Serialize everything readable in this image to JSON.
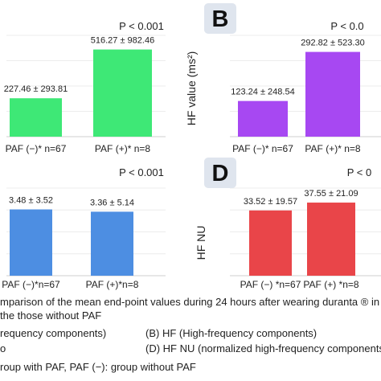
{
  "chart_data": [
    {
      "type": "bar",
      "panel": "",
      "p_value": "P < 0.001",
      "ylabel": "",
      "categories": [
        "PAF (−)* n=67",
        "PAF (+)* n=8"
      ],
      "values": [
        227.46,
        516.27
      ],
      "value_labels": [
        "227.46 ± 293.81",
        "516.27 ± 982.46"
      ],
      "colors": [
        "#3ee876",
        "#3ee876"
      ],
      "ylim": [
        0,
        600
      ],
      "yticks": []
    },
    {
      "type": "bar",
      "panel": "B",
      "p_value": "P < 0.0",
      "ylabel": "HF value (ms²)",
      "categories": [
        "PAF (−)* n=67",
        "PAF (+)* n=8"
      ],
      "values": [
        123.24,
        292.82
      ],
      "value_labels": [
        "123.24 ± 248.54",
        "292.82 ± 523.30"
      ],
      "colors": [
        "#a748f2",
        "#a748f2"
      ],
      "ylim": [
        0,
        350
      ],
      "yticks": []
    },
    {
      "type": "bar",
      "panel": "",
      "p_value": "P < 0.001",
      "ylabel": "",
      "categories": [
        "PAF (−)*n=67",
        "PAF (+)*n=8"
      ],
      "values": [
        3.48,
        3.36
      ],
      "value_labels": [
        "3.48 ± 3.52",
        "3.36 ± 5.14"
      ],
      "colors": [
        "#4d8ee2",
        "#4d8ee2"
      ],
      "ylim": [
        0,
        4.6
      ],
      "yticks": []
    },
    {
      "type": "bar",
      "panel": "D",
      "p_value": "P < 0",
      "ylabel": "HF NU",
      "categories": [
        "PAF (−) *n=67",
        "PAF (+) *n=8"
      ],
      "values": [
        33.52,
        37.55
      ],
      "value_labels": [
        "33.52 ± 19.57",
        "37.55 ± 21.09"
      ],
      "colors": [
        "#e94549",
        "#e94549"
      ],
      "ylim": [
        0,
        45
      ],
      "yticks": []
    }
  ],
  "caption": {
    "line1": "mparison of the mean end-point values during 24 hours after wearing duranta ® in the",
    "line2": "the those without PAF",
    "item_a": "requency components)",
    "item_b": "(B) HF (High-frequency components)",
    "item_c": "o",
    "item_d": "(D) HF NU (normalized high-frequency components)",
    "footnote": "roup with PAF, PAF (−): group without PAF"
  }
}
